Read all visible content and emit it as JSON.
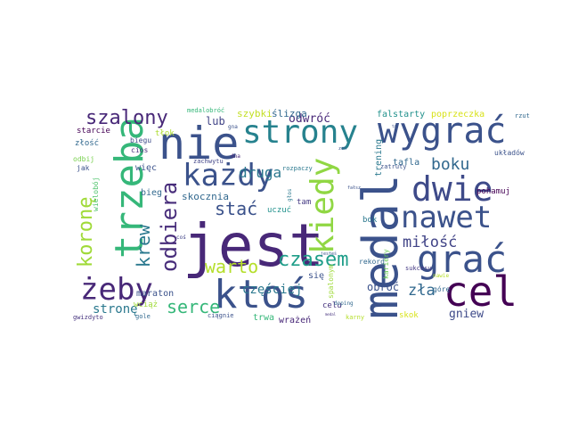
{
  "words": [
    {
      "text": "jest",
      "color": "#482878"
    },
    {
      "text": "nie",
      "color": "#3b528b"
    },
    {
      "text": "medal",
      "color": "#3b528b"
    },
    {
      "text": "ktoś",
      "color": "#3b528b"
    },
    {
      "text": "wygrać",
      "color": "#3b528b"
    },
    {
      "text": "cel",
      "color": "#440154"
    },
    {
      "text": "trzeba",
      "color": "#35b779"
    },
    {
      "text": "grać",
      "color": "#3b528b"
    },
    {
      "text": "dwie",
      "color": "#3e4a89"
    },
    {
      "text": "strony",
      "color": "#26828e"
    },
    {
      "text": "kiedy",
      "color": "#90d743"
    },
    {
      "text": "nawet",
      "color": "#3b528b"
    },
    {
      "text": "każdy",
      "color": "#3b528b"
    },
    {
      "text": "żeby",
      "color": "#482878"
    },
    {
      "text": "szalony",
      "color": "#482878"
    },
    {
      "text": "odbiera",
      "color": "#472c7a"
    },
    {
      "text": "krew",
      "color": "#2a788e"
    },
    {
      "text": "koronę",
      "color": "#a0da39"
    },
    {
      "text": "czasem",
      "color": "#1f9e89"
    },
    {
      "text": "warto",
      "color": "#b5de2b"
    },
    {
      "text": "stać",
      "color": "#3b528b"
    },
    {
      "text": "serce",
      "color": "#35b779"
    },
    {
      "text": "boku",
      "color": "#31688e"
    },
    {
      "text": "miłość",
      "color": "#414487"
    },
    {
      "text": "zła",
      "color": "#31688e"
    },
    {
      "text": "druga",
      "color": "#2a788e"
    },
    {
      "text": "częściej",
      "color": "#2a788e"
    },
    {
      "text": "gniew",
      "color": "#3e4a89"
    },
    {
      "text": "stronę",
      "color": "#2a788e"
    },
    {
      "text": "odwróć",
      "color": "#482878"
    },
    {
      "text": "obróć",
      "color": "#3b528b"
    },
    {
      "text": "lub",
      "color": "#414487"
    },
    {
      "text": "szybki",
      "color": "#c2df23"
    },
    {
      "text": "ślizga",
      "color": "#31688e"
    },
    {
      "text": "falstarty",
      "color": "#21918c"
    },
    {
      "text": "poprzeczka",
      "color": "#d8e219"
    },
    {
      "text": "skocznia",
      "color": "#31688e"
    },
    {
      "text": "tafla",
      "color": "#31688e"
    },
    {
      "text": "trening",
      "color": "#2a788e"
    },
    {
      "text": "bieg",
      "color": "#31688e"
    },
    {
      "text": "więc",
      "color": "#3b528b"
    },
    {
      "text": "uczuć",
      "color": "#21918c"
    },
    {
      "text": "tam",
      "color": "#443983"
    },
    {
      "text": "się",
      "color": "#3b528b"
    },
    {
      "text": "celu",
      "color": "#46337e"
    },
    {
      "text": "bok",
      "color": "#2a788e"
    },
    {
      "text": "maraton",
      "color": "#3b528b"
    },
    {
      "text": "trwa",
      "color": "#35b779"
    },
    {
      "text": "wrażeń",
      "color": "#482878"
    },
    {
      "text": "wciąż",
      "color": "#a0da39"
    },
    {
      "text": "skok",
      "color": "#d8e219"
    },
    {
      "text": "pohamuj",
      "color": "#440154"
    },
    {
      "text": "układów",
      "color": "#3b528b"
    },
    {
      "text": "kariery",
      "color": "#6ece58"
    },
    {
      "text": "sukcesu",
      "color": "#443983"
    },
    {
      "text": "górę",
      "color": "#31688e"
    },
    {
      "text": "rekord",
      "color": "#31688e"
    },
    {
      "text": "spalonym",
      "color": "#9fda3a"
    },
    {
      "text": "starcie",
      "color": "#440154"
    },
    {
      "text": "tłok",
      "color": "#addc30"
    },
    {
      "text": "złość",
      "color": "#31688e"
    },
    {
      "text": "biegu",
      "color": "#3e4a89"
    },
    {
      "text": "cios",
      "color": "#472c7a"
    },
    {
      "text": "odbij",
      "color": "#7ad151"
    },
    {
      "text": "jak",
      "color": "#3b528b"
    },
    {
      "text": "wielobój",
      "color": "#4ec36b"
    },
    {
      "text": "gwizdyto",
      "color": "#46337e"
    },
    {
      "text": "gole",
      "color": "#31688e"
    },
    {
      "text": "ciągnie",
      "color": "#3b528b"
    },
    {
      "text": "karny",
      "color": "#b5de2b"
    },
    {
      "text": "rzut",
      "color": "#31688e"
    },
    {
      "text": "zatruty",
      "color": "#3b528b"
    },
    {
      "text": "zachwytu",
      "color": "#414487"
    },
    {
      "text": "rozpaczy",
      "color": "#2a788e"
    },
    {
      "text": "dna",
      "color": "#482878"
    },
    {
      "text": "gna",
      "color": "#3b528b"
    },
    {
      "text": "medalobróć",
      "color": "#35b779"
    },
    {
      "text": "coś",
      "color": "#414487"
    },
    {
      "text": "doping",
      "color": "#31688e"
    },
    {
      "text": "głos",
      "color": "#2a788e"
    },
    {
      "text": "nawie",
      "color": "#b5de2b"
    },
    {
      "text": "jesteś",
      "color": "#3b528b"
    },
    {
      "text": "zeń",
      "color": "#3b528b"
    },
    {
      "text": "fałsz",
      "color": "#3b528b"
    },
    {
      "text": "medal",
      "color": "#46337e"
    },
    {
      "text": "tak",
      "color": "#3b528b"
    }
  ]
}
